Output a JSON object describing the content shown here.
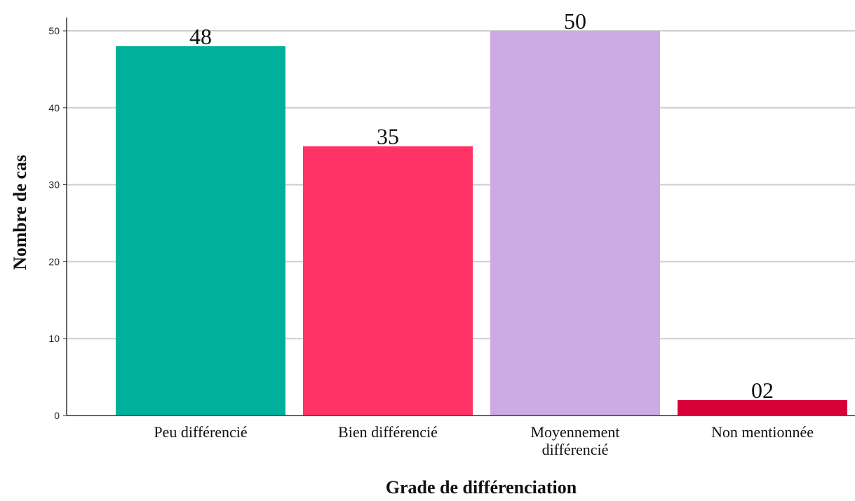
{
  "chart_data": {
    "type": "bar",
    "title": "",
    "xlabel": "Grade de différenciation",
    "ylabel": "Nombre de cas",
    "ylim": [
      0,
      50
    ],
    "yticks": [
      0,
      10,
      20,
      30,
      40,
      50
    ],
    "grid": true,
    "categories": [
      [
        "Peu différencié"
      ],
      [
        "Bien différencié"
      ],
      [
        "Moyennement",
        "différencié"
      ],
      [
        "Non mentionnée"
      ]
    ],
    "values": [
      48,
      35,
      50,
      2
    ],
    "value_labels": [
      "48",
      "35",
      "50",
      "02"
    ],
    "colors": [
      "#00B09B",
      "#FF3366",
      "#CEAAE4",
      "#D9003A"
    ]
  }
}
